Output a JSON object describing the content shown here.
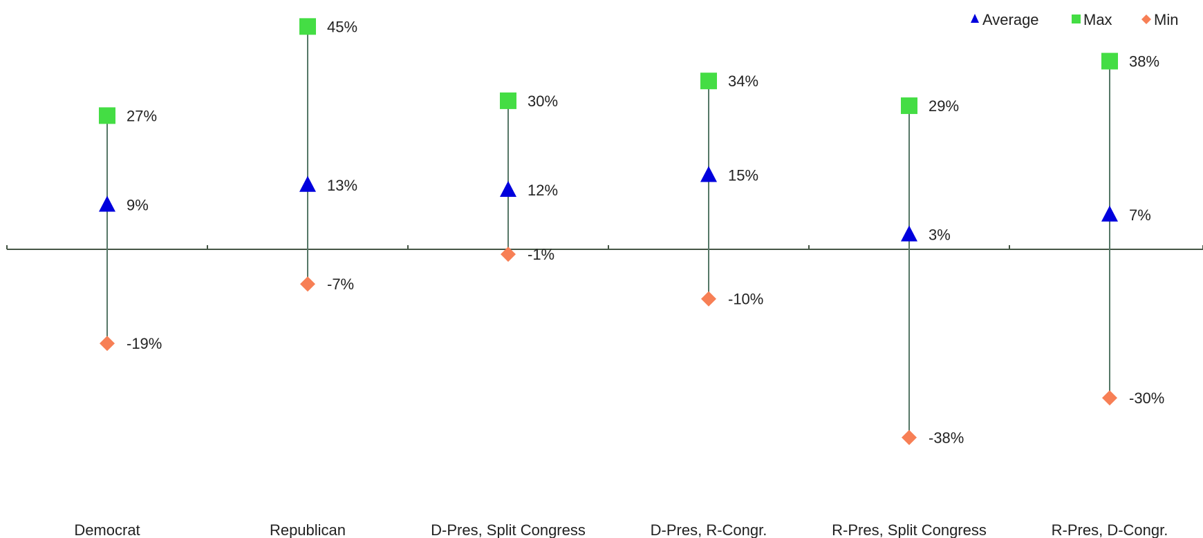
{
  "chart_data": {
    "type": "scatter",
    "title": "",
    "xlabel": "",
    "ylabel": "",
    "categories": [
      "Democrat",
      "Republican",
      "D-Pres, Split Congress",
      "D-Pres, R-Congr.",
      "R-Pres, Split Congress",
      "R-Pres, D-Congr."
    ],
    "series": [
      {
        "name": "Average",
        "marker": "triangle",
        "color": "#0000dd",
        "values": [
          9,
          13,
          12,
          15,
          3,
          7
        ]
      },
      {
        "name": "Max",
        "marker": "square",
        "color": "#44dd44",
        "values": [
          27,
          45,
          30,
          34,
          29,
          38
        ]
      },
      {
        "name": "Min",
        "marker": "diamond",
        "color": "#f77f55",
        "values": [
          -19,
          -7,
          -1,
          -10,
          -38,
          -30
        ]
      }
    ],
    "data_labels": {
      "Average": [
        "9%",
        "13%",
        "12%",
        "15%",
        "3%",
        "7%"
      ],
      "Max": [
        "27%",
        "45%",
        "30%",
        "34%",
        "29%",
        "38%"
      ],
      "Min": [
        "-19%",
        "-7%",
        "-1%",
        "-10%",
        "-38%",
        "-30%"
      ]
    },
    "ylim": [
      -60,
      49
    ],
    "grid": false,
    "legend_position": "top-right",
    "line_color": "#557766",
    "axis_color": "#445544"
  }
}
